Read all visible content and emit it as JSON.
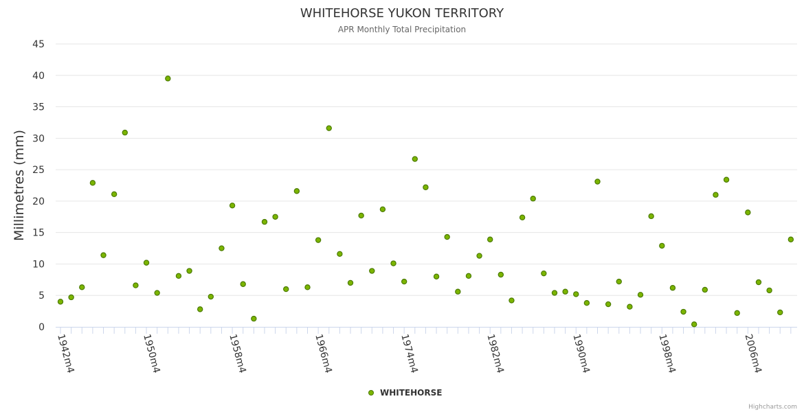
{
  "chart_data": {
    "type": "scatter",
    "title": "WHITEHORSE YUKON TERRITORY",
    "subtitle": "APR Monthly Total Precipitation",
    "xlabel": "",
    "ylabel": "Millimetres (mm)",
    "ylim": [
      0,
      45
    ],
    "yticks": [
      0,
      5,
      10,
      15,
      20,
      25,
      30,
      35,
      40,
      45
    ],
    "grid": true,
    "legend_position": "bottom-center",
    "credits": "Highcharts.com",
    "colors": {
      "marker_fill": "#7cb500",
      "marker_stroke": "#4a7a00",
      "grid": "#e6e6e6",
      "axis": "#ccd6eb",
      "text": "#333333"
    },
    "x_label_every": 8,
    "categories": [
      "1942m4",
      "1943m4",
      "1944m4",
      "1945m4",
      "1946m4",
      "1947m4",
      "1948m4",
      "1949m4",
      "1950m4",
      "1951m4",
      "1952m4",
      "1953m4",
      "1954m4",
      "1955m4",
      "1956m4",
      "1957m4",
      "1958m4",
      "1959m4",
      "1960m4",
      "1961m4",
      "1962m4",
      "1963m4",
      "1964m4",
      "1965m4",
      "1966m4",
      "1967m4",
      "1968m4",
      "1969m4",
      "1970m4",
      "1971m4",
      "1972m4",
      "1973m4",
      "1974m4",
      "1975m4",
      "1976m4",
      "1977m4",
      "1978m4",
      "1979m4",
      "1980m4",
      "1981m4",
      "1982m4",
      "1983m4",
      "1984m4",
      "1985m4",
      "1986m4",
      "1987m4",
      "1988m4",
      "1989m4",
      "1990m4",
      "1991m4",
      "1992m4",
      "1993m4",
      "1994m4",
      "1995m4",
      "1996m4",
      "1997m4",
      "1998m4",
      "1999m4",
      "2000m4",
      "2001m4",
      "2002m4",
      "2003m4",
      "2004m4",
      "2005m4",
      "2006m4",
      "2007m4",
      "2008m4",
      "2009m4",
      "2010m4"
    ],
    "series": [
      {
        "name": "WHITEHORSE",
        "values": [
          4.0,
          4.7,
          6.3,
          22.9,
          11.4,
          21.1,
          30.9,
          6.6,
          10.2,
          5.4,
          39.5,
          8.1,
          8.9,
          2.8,
          4.8,
          12.5,
          19.3,
          6.8,
          1.3,
          16.7,
          17.5,
          6.0,
          21.6,
          6.3,
          13.8,
          31.6,
          11.6,
          7.0,
          17.7,
          8.9,
          18.7,
          10.1,
          7.2,
          26.7,
          22.2,
          8.0,
          14.3,
          5.6,
          8.1,
          11.3,
          13.9,
          8.3,
          4.2,
          17.4,
          20.4,
          8.5,
          5.4,
          5.6,
          5.2,
          3.8,
          23.1,
          3.6,
          7.2,
          3.2,
          5.1,
          17.6,
          12.9,
          6.2,
          2.4,
          0.4,
          5.9,
          21.0,
          23.4,
          2.2,
          18.2,
          7.1,
          5.8,
          2.3,
          13.9
        ]
      }
    ]
  }
}
